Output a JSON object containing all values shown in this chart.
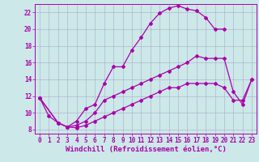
{
  "background_color": "#cce8e8",
  "grid_color": "#aaaacc",
  "line_color": "#aa00aa",
  "marker": "D",
  "markersize": 2,
  "linewidth": 0.9,
  "xlabel": "Windchill (Refroidissement éolien,°C)",
  "xlabel_fontsize": 6.5,
  "tick_fontsize": 5.5,
  "xlim": [
    -0.5,
    23.5
  ],
  "ylim": [
    7.5,
    23.0
  ],
  "yticks": [
    8,
    10,
    12,
    14,
    16,
    18,
    20,
    22
  ],
  "xticks": [
    0,
    1,
    2,
    3,
    4,
    5,
    6,
    7,
    8,
    9,
    10,
    11,
    12,
    13,
    14,
    15,
    16,
    17,
    18,
    19,
    20,
    21,
    22,
    23
  ],
  "series": [
    {
      "x": [
        0,
        1,
        2,
        3,
        4,
        5,
        6,
        7,
        8,
        9,
        10,
        11,
        12,
        13,
        14,
        15,
        16,
        17,
        18,
        19,
        20
      ],
      "y": [
        11.8,
        9.6,
        8.8,
        8.3,
        9.0,
        10.5,
        11.0,
        13.5,
        15.5,
        15.5,
        17.5,
        19.0,
        20.7,
        21.9,
        22.5,
        22.8,
        22.4,
        22.2,
        21.4,
        20.0,
        20.0
      ]
    },
    {
      "x": [
        0,
        2,
        3,
        4,
        5,
        6,
        7,
        8,
        9,
        10,
        11,
        12,
        13,
        14,
        15,
        16,
        17,
        18,
        19,
        20,
        21,
        22,
        23
      ],
      "y": [
        11.8,
        8.8,
        8.3,
        8.5,
        9.0,
        10.0,
        11.5,
        12.0,
        12.5,
        13.0,
        13.5,
        14.0,
        14.5,
        15.0,
        15.5,
        16.0,
        16.8,
        16.5,
        16.5,
        16.5,
        12.5,
        11.0,
        14.0
      ]
    },
    {
      "x": [
        0,
        2,
        3,
        4,
        5,
        6,
        7,
        8,
        9,
        10,
        11,
        12,
        13,
        14,
        15,
        16,
        17,
        18,
        19,
        20,
        21,
        22,
        23
      ],
      "y": [
        11.8,
        8.8,
        8.3,
        8.2,
        8.5,
        9.0,
        9.5,
        10.0,
        10.5,
        11.0,
        11.5,
        12.0,
        12.5,
        13.0,
        13.0,
        13.5,
        13.5,
        13.5,
        13.5,
        13.0,
        11.5,
        11.5,
        14.0
      ]
    }
  ]
}
